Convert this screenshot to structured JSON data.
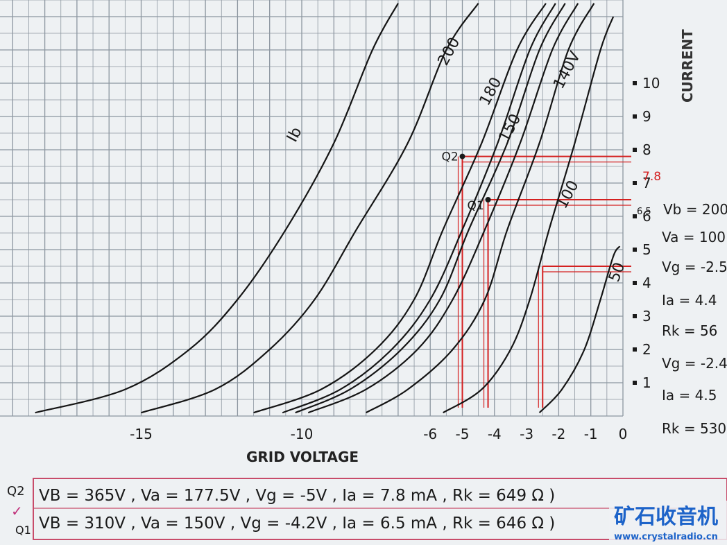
{
  "chart_data": {
    "type": "line",
    "xlabel": "GRID VOLTAGE",
    "ylabel": "CURRENT",
    "xlim": [
      -19,
      0
    ],
    "ylim": [
      0,
      12
    ],
    "grid": true,
    "x_ticks": [
      "-15",
      "-10",
      "-6",
      "-5",
      "-4",
      "-3",
      "-2",
      "-1",
      "0"
    ],
    "x_tick_values": [
      -15,
      -10,
      -6,
      -5,
      -4,
      -3,
      -2,
      -1,
      0
    ],
    "y_ticks": [
      "1",
      "2",
      "3",
      "4",
      "5",
      "6",
      "7",
      "8",
      "9",
      "10"
    ],
    "y_tick_values": [
      1,
      2,
      3,
      4,
      5,
      6,
      7,
      8,
      9,
      10
    ],
    "series": [
      {
        "name": "Ib",
        "points": [
          [
            -18.3,
            0.1
          ],
          [
            -15.5,
            0.8
          ],
          [
            -13.5,
            2.0
          ],
          [
            -12.0,
            3.5
          ],
          [
            -10.5,
            5.6
          ],
          [
            -9.0,
            8.2
          ],
          [
            -7.8,
            11.0
          ],
          [
            -7.0,
            12.4
          ]
        ]
      },
      {
        "name": "",
        "points": [
          [
            -15.0,
            0.1
          ],
          [
            -12.7,
            0.8
          ],
          [
            -11.0,
            2.0
          ],
          [
            -9.6,
            3.5
          ],
          [
            -8.3,
            5.6
          ],
          [
            -6.7,
            8.2
          ],
          [
            -5.5,
            11.0
          ],
          [
            -4.5,
            12.4
          ]
        ]
      },
      {
        "name": "200",
        "points": [
          [
            -11.5,
            0.1
          ],
          [
            -9.4,
            0.8
          ],
          [
            -7.7,
            2.0
          ],
          [
            -6.5,
            3.5
          ],
          [
            -5.6,
            5.6
          ],
          [
            -4.4,
            8.2
          ],
          [
            -3.3,
            11.0
          ],
          [
            -2.4,
            12.4
          ]
        ]
      },
      {
        "name": "",
        "points": [
          [
            -10.6,
            0.1
          ],
          [
            -8.8,
            0.8
          ],
          [
            -7.2,
            2.0
          ],
          [
            -6.0,
            3.5
          ],
          [
            -5.0,
            5.6
          ],
          [
            -3.9,
            8.2
          ],
          [
            -2.9,
            11.0
          ],
          [
            -2.1,
            12.4
          ]
        ]
      },
      {
        "name": "180",
        "points": [
          [
            -10.2,
            0.1
          ],
          [
            -8.5,
            0.8
          ],
          [
            -6.9,
            2.0
          ],
          [
            -5.7,
            3.5
          ],
          [
            -4.8,
            5.6
          ],
          [
            -3.6,
            8.2
          ],
          [
            -2.6,
            11.0
          ],
          [
            -1.8,
            12.4
          ]
        ]
      },
      {
        "name": "150",
        "points": [
          [
            -9.8,
            0.1
          ],
          [
            -8.0,
            0.8
          ],
          [
            -6.4,
            2.0
          ],
          [
            -5.3,
            3.5
          ],
          [
            -4.3,
            5.6
          ],
          [
            -3.2,
            8.2
          ],
          [
            -2.2,
            11.0
          ],
          [
            -1.4,
            12.4
          ]
        ]
      },
      {
        "name": "140V",
        "points": [
          [
            -8.0,
            0.1
          ],
          [
            -6.7,
            0.8
          ],
          [
            -5.3,
            2.0
          ],
          [
            -4.3,
            3.5
          ],
          [
            -3.6,
            5.6
          ],
          [
            -2.6,
            8.2
          ],
          [
            -1.7,
            11.0
          ],
          [
            -0.9,
            12.4
          ]
        ]
      },
      {
        "name": "100",
        "points": [
          [
            -5.6,
            0.1
          ],
          [
            -4.4,
            0.8
          ],
          [
            -3.5,
            2.0
          ],
          [
            -2.9,
            3.5
          ],
          [
            -2.3,
            5.6
          ],
          [
            -1.5,
            8.2
          ],
          [
            -0.7,
            11.0
          ],
          [
            -0.3,
            12.0
          ]
        ]
      },
      {
        "name": "50",
        "points": [
          [
            -2.6,
            0.1
          ],
          [
            -1.9,
            0.8
          ],
          [
            -1.2,
            2.0
          ],
          [
            -0.7,
            3.5
          ],
          [
            -0.3,
            4.8
          ],
          [
            -0.1,
            5.1
          ]
        ]
      }
    ],
    "guide_lines": [
      {
        "x": -5.0,
        "y": 7.8
      },
      {
        "x": -4.2,
        "y": 6.5
      },
      {
        "x": -2.5,
        "y": 4.5
      }
    ],
    "marked_points": [
      {
        "label": "Q2",
        "x": -5.0,
        "y": 7.8
      },
      {
        "label": "Q1",
        "x": -4.2,
        "y": 6.5
      }
    ],
    "red_tick_label": "7.8",
    "side_tick_label": "6.5",
    "right_notes": [
      "Vb = 200",
      "Va = 100",
      "Vg = -2.5",
      "Ia = 4.4",
      "Rk = 56",
      "Vg = -2.4",
      "Ia = 4.5",
      "Rk = 530"
    ],
    "box_lines": [
      {
        "label": "Q2",
        "text": "VB = 365V , Va = 177.5V , Vg = -5V , Ia = 7.8 mA , Rk = 649 Ω )"
      },
      {
        "label": "Q1",
        "text": "VB = 310V , Va = 150V , Vg = -4.2V , Ia = 6.5 mA , Rk = 646 Ω )"
      }
    ],
    "check_mark": "✓",
    "colors": {
      "grid": "#8c96a0",
      "curve": "#151515",
      "annotation": "#d42020",
      "paper": "#eef1f3"
    }
  },
  "watermark": {
    "logo_text": "矿石收音机",
    "url": "www.crystalradio.cn"
  }
}
